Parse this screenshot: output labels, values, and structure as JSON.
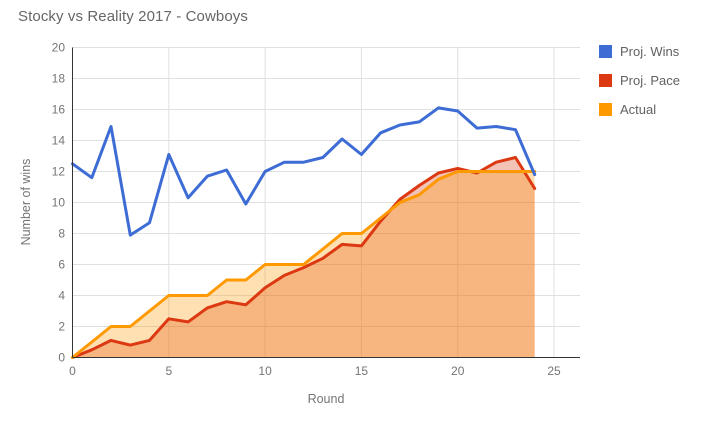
{
  "title": "Stocky vs Reality 2017 - Cowboys",
  "legend": {
    "items": [
      {
        "label": "Proj. Wins",
        "color": "#3D6CD4"
      },
      {
        "label": "Proj. Pace",
        "color": "#DC3912"
      },
      {
        "label": "Actual",
        "color": "#FF9900"
      }
    ]
  },
  "axes": {
    "x_label": "Round",
    "y_label": "Number of wins"
  },
  "chart_data": {
    "type": "line",
    "title": "Stocky vs Reality 2017 - Cowboys",
    "xlabel": "Round",
    "ylabel": "Number of wins",
    "x": [
      0,
      1,
      2,
      3,
      4,
      5,
      6,
      7,
      8,
      9,
      10,
      11,
      12,
      13,
      14,
      15,
      16,
      17,
      18,
      19,
      20,
      21,
      22,
      23,
      24
    ],
    "series": [
      {
        "name": "Proj. Wins",
        "color": "#3D6CD4",
        "fill": false,
        "values": [
          12.5,
          11.6,
          14.9,
          7.9,
          8.7,
          13.1,
          10.3,
          11.7,
          12.1,
          9.9,
          12.0,
          12.6,
          12.6,
          12.9,
          14.1,
          13.1,
          14.5,
          15.0,
          15.2,
          16.1,
          15.9,
          14.8,
          14.9,
          14.7,
          11.8
        ]
      },
      {
        "name": "Proj. Pace",
        "color": "#DC3912",
        "fill": true,
        "values": [
          0,
          0.5,
          1.1,
          0.8,
          1.1,
          2.5,
          2.3,
          3.2,
          3.6,
          3.4,
          4.5,
          5.3,
          5.8,
          6.4,
          7.3,
          7.2,
          8.8,
          10.2,
          11.1,
          11.9,
          12.2,
          11.9,
          12.6,
          12.9,
          10.9
        ]
      },
      {
        "name": "Actual",
        "color": "#FF9900",
        "fill": true,
        "values": [
          0,
          1,
          2,
          2,
          3,
          4,
          4,
          4,
          5,
          5,
          6,
          6,
          6,
          7,
          8,
          8,
          9,
          10,
          10.5,
          11.5,
          12,
          12,
          12,
          12,
          12
        ]
      }
    ],
    "x_ticks": [
      0,
      5,
      10,
      15,
      20,
      25
    ],
    "y_ticks": [
      0,
      2,
      4,
      6,
      8,
      10,
      12,
      14,
      16,
      18,
      20
    ],
    "xlim": [
      0,
      26.3
    ],
    "ylim": [
      0,
      20
    ],
    "fill_opacity": 0.3,
    "grid": true,
    "legend_position": "right",
    "grid_color": "#E0E0E0",
    "axis_color": "#333333",
    "tick_label_color": "#757575"
  }
}
